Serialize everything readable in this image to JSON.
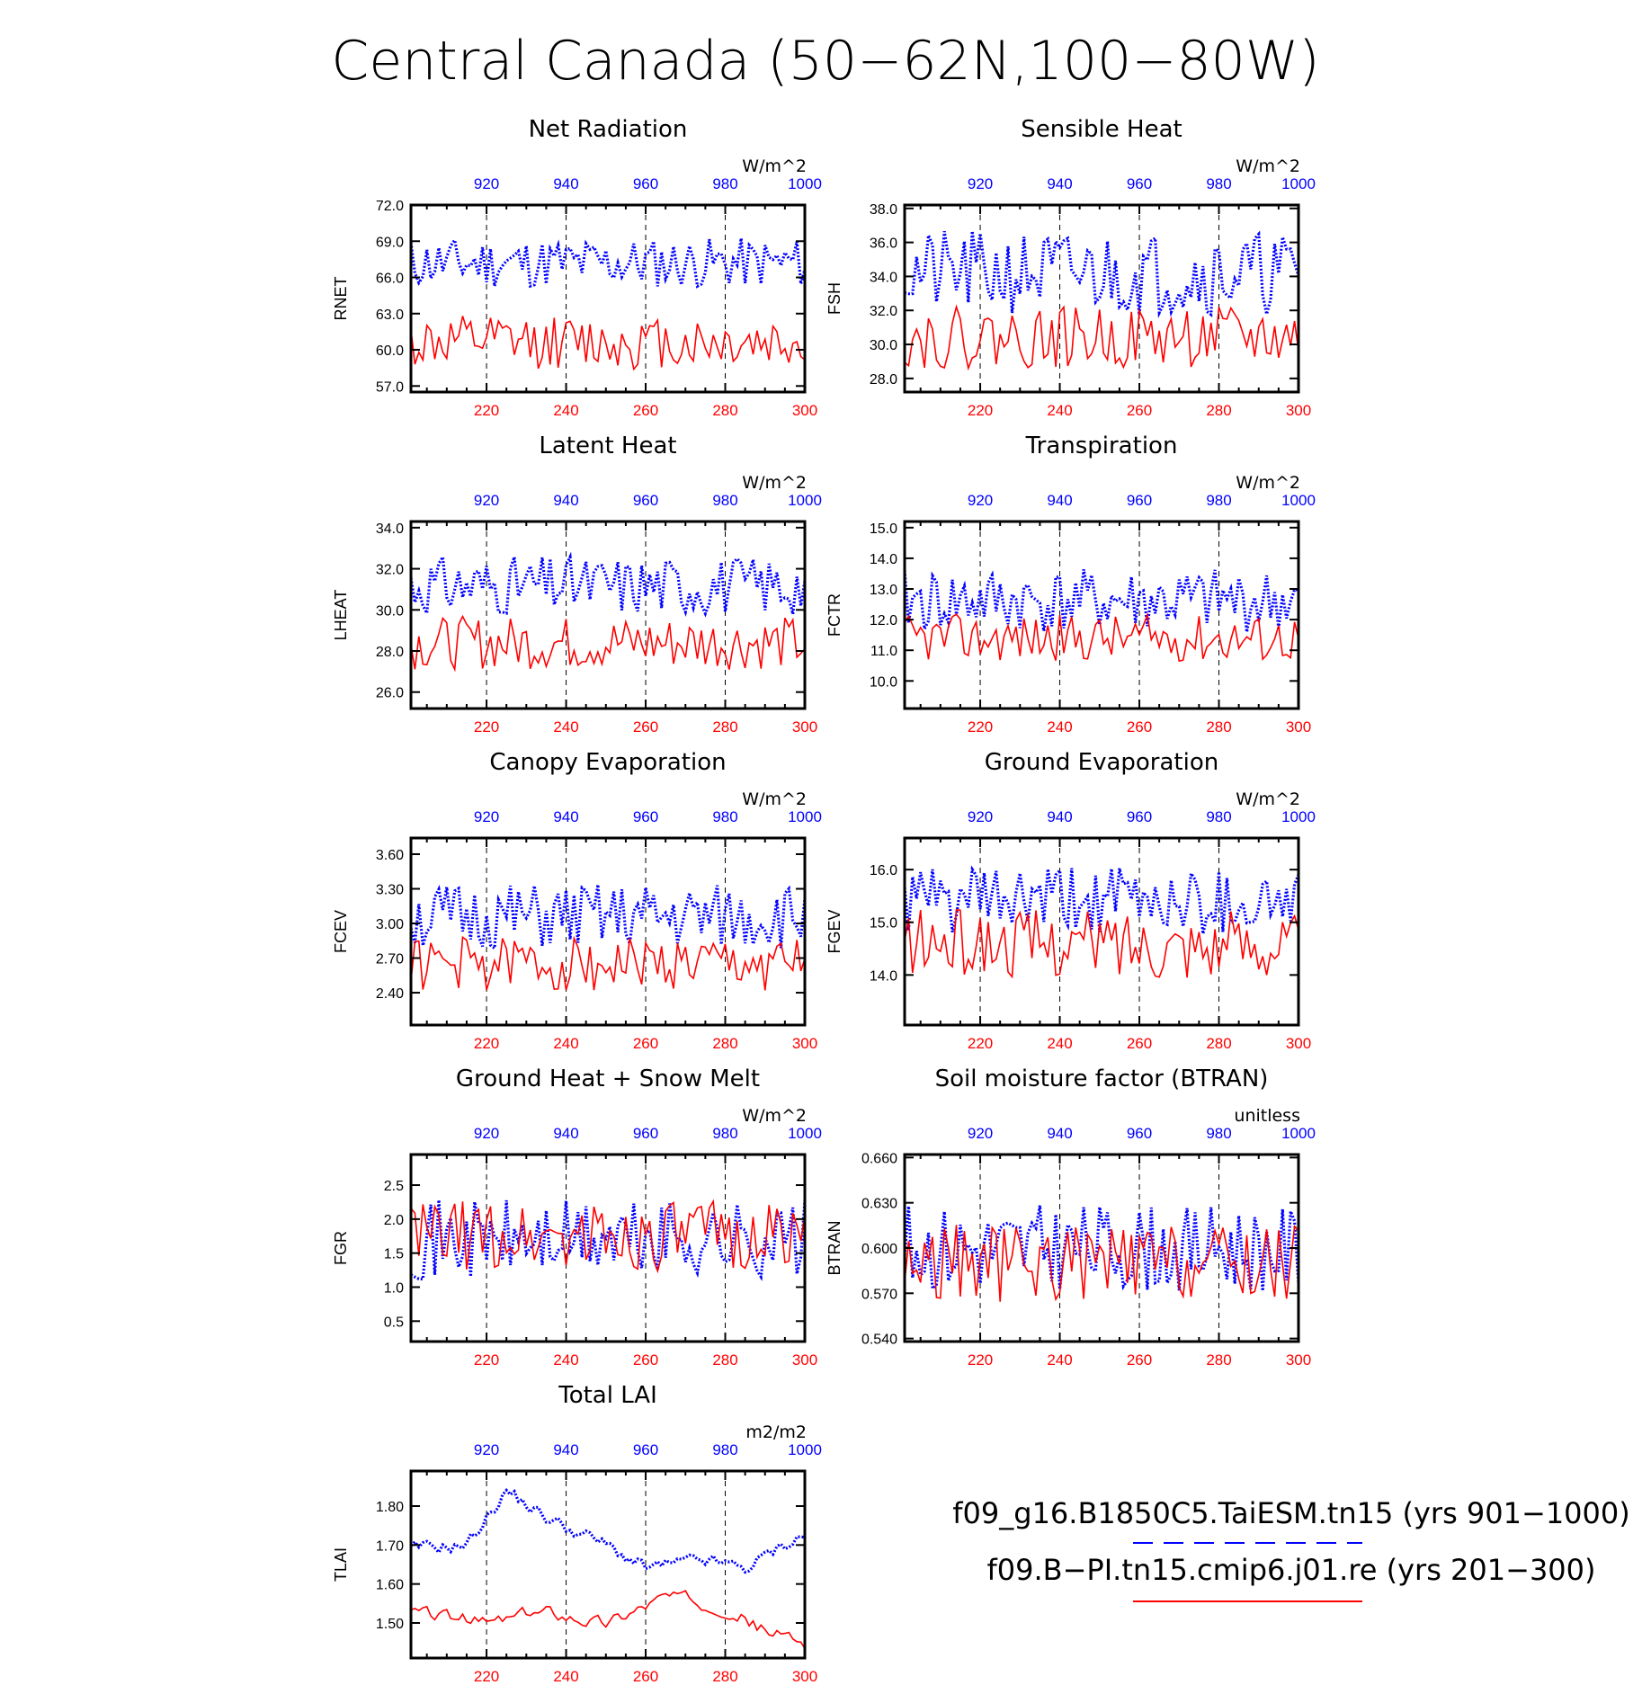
{
  "figure_title": "Central Canada (50−62N,100−80W)",
  "colors": {
    "run1": "#0000ff",
    "run2": "#ff0000"
  },
  "legend": {
    "entries": [
      {
        "label": "f09_g16.B1850C5.TaiESM.tn15 (yrs 901−1000)",
        "style": "blue-dashed"
      },
      {
        "label": "f09.B−PI.tn15.cmip6.j01.re (yrs 201−300)",
        "style": "red-solid"
      }
    ]
  },
  "chart_data": [
    {
      "type": "line",
      "title": "Net Radiation",
      "units": "W/m^2",
      "ylabel": "RNET",
      "ylim": [
        56.5,
        72.0
      ],
      "yticks": [
        "72.0",
        "69.0",
        "66.0",
        "63.0",
        "60.0",
        "57.0"
      ],
      "ytick_values": [
        72,
        69,
        66,
        63,
        60,
        57
      ],
      "x_top_ticks": [
        "920",
        "940",
        "960",
        "980",
        "1000"
      ],
      "x_top_values": [
        920,
        940,
        960,
        980,
        1000
      ],
      "x_bottom_ticks": [
        "220",
        "240",
        "260",
        "280",
        "300"
      ],
      "x_bottom_values": [
        220,
        240,
        260,
        280,
        300
      ],
      "series": [
        {
          "years": [
            901,
            1000
          ],
          "mean": 67.2,
          "amp": 1.6,
          "seed": 11
        },
        {
          "years": [
            201,
            300
          ],
          "mean": 60.6,
          "amp": 1.7,
          "seed": 12
        }
      ]
    },
    {
      "type": "line",
      "title": "Sensible Heat",
      "units": "W/m^2",
      "ylabel": "FSH",
      "ylim": [
        27.2,
        38.2
      ],
      "yticks": [
        "38.0",
        "36.0",
        "34.0",
        "32.0",
        "30.0",
        "28.0"
      ],
      "ytick_values": [
        38,
        36,
        34,
        32,
        30,
        28
      ],
      "x_top_ticks": [
        "920",
        "940",
        "960",
        "980",
        "1000"
      ],
      "x_top_values": [
        920,
        940,
        960,
        980,
        1000
      ],
      "x_bottom_ticks": [
        "220",
        "240",
        "260",
        "280",
        "300"
      ],
      "x_bottom_values": [
        220,
        240,
        260,
        280,
        300
      ],
      "series": [
        {
          "years": [
            901,
            1000
          ],
          "mean": 34.2,
          "amp": 1.9,
          "seed": 21
        },
        {
          "years": [
            201,
            300
          ],
          "mean": 30.4,
          "amp": 1.4,
          "seed": 22
        }
      ]
    },
    {
      "type": "line",
      "title": "Latent Heat",
      "units": "W/m^2",
      "ylabel": "LHEAT",
      "ylim": [
        25.2,
        34.3
      ],
      "yticks": [
        "34.0",
        "32.0",
        "30.0",
        "28.0",
        "26.0"
      ],
      "ytick_values": [
        34,
        32,
        30,
        28,
        26
      ],
      "x_top_ticks": [
        "920",
        "940",
        "960",
        "980",
        "1000"
      ],
      "x_top_values": [
        920,
        940,
        960,
        980,
        1000
      ],
      "x_bottom_ticks": [
        "220",
        "240",
        "260",
        "280",
        "300"
      ],
      "x_bottom_values": [
        220,
        240,
        260,
        280,
        300
      ],
      "series": [
        {
          "years": [
            901,
            1000
          ],
          "mean": 31.2,
          "amp": 1.1,
          "seed": 31
        },
        {
          "years": [
            201,
            300
          ],
          "mean": 28.4,
          "amp": 1.0,
          "seed": 32
        }
      ]
    },
    {
      "type": "line",
      "title": "Transpiration",
      "units": "W/m^2",
      "ylabel": "FCTR",
      "ylim": [
        9.1,
        15.2
      ],
      "yticks": [
        "15.0",
        "14.0",
        "13.0",
        "12.0",
        "11.0",
        "10.0"
      ],
      "ytick_values": [
        15,
        14,
        13,
        12,
        11,
        10
      ],
      "x_top_ticks": [
        "920",
        "940",
        "960",
        "980",
        "1000"
      ],
      "x_top_values": [
        920,
        940,
        960,
        980,
        1000
      ],
      "x_bottom_ticks": [
        "220",
        "240",
        "260",
        "280",
        "300"
      ],
      "x_bottom_values": [
        220,
        240,
        260,
        280,
        300
      ],
      "series": [
        {
          "years": [
            901,
            1000
          ],
          "mean": 12.6,
          "amp": 0.8,
          "seed": 41
        },
        {
          "years": [
            201,
            300
          ],
          "mean": 11.4,
          "amp": 0.6,
          "seed": 42
        }
      ]
    },
    {
      "type": "line",
      "title": "Canopy Evaporation",
      "units": "W/m^2",
      "ylabel": "FCEV",
      "ylim": [
        2.12,
        3.74
      ],
      "yticks": [
        "3.60",
        "3.30",
        "3.00",
        "2.70",
        "2.40"
      ],
      "ytick_values": [
        3.6,
        3.3,
        3.0,
        2.7,
        2.4
      ],
      "x_top_ticks": [
        "920",
        "940",
        "960",
        "980",
        "1000"
      ],
      "x_top_values": [
        920,
        940,
        960,
        980,
        1000
      ],
      "x_bottom_ticks": [
        "220",
        "240",
        "260",
        "280",
        "300"
      ],
      "x_bottom_values": [
        220,
        240,
        260,
        280,
        300
      ],
      "series": [
        {
          "years": [
            901,
            1000
          ],
          "mean": 3.05,
          "amp": 0.22,
          "seed": 51
        },
        {
          "years": [
            201,
            300
          ],
          "mean": 2.65,
          "amp": 0.18,
          "seed": 52
        }
      ]
    },
    {
      "type": "line",
      "title": "Ground Evaporation",
      "units": "W/m^2",
      "ylabel": "FGEV",
      "ylim": [
        13.05,
        16.6
      ],
      "yticks": [
        "16.0",
        "15.0",
        "14.0"
      ],
      "ytick_values": [
        16,
        15,
        14
      ],
      "x_top_ticks": [
        "920",
        "940",
        "960",
        "980",
        "1000"
      ],
      "x_top_values": [
        920,
        940,
        960,
        980,
        1000
      ],
      "x_bottom_ticks": [
        "220",
        "240",
        "260",
        "280",
        "300"
      ],
      "x_bottom_values": [
        220,
        240,
        260,
        280,
        300
      ],
      "series": [
        {
          "years": [
            901,
            1000
          ],
          "mean": 15.4,
          "amp": 0.5,
          "seed": 61
        },
        {
          "years": [
            201,
            300
          ],
          "mean": 14.6,
          "amp": 0.5,
          "seed": 62
        }
      ]
    },
    {
      "type": "line",
      "title": "Ground Heat + Snow Melt",
      "units": "W/m^2",
      "ylabel": "FGR",
      "ylim": [
        0.2,
        2.95
      ],
      "yticks": [
        "2.5",
        "2.0",
        "1.5",
        "1.0",
        "0.5"
      ],
      "ytick_values": [
        2.5,
        2.0,
        1.5,
        1.0,
        0.5
      ],
      "x_top_ticks": [
        "920",
        "940",
        "960",
        "980",
        "1000"
      ],
      "x_top_values": [
        920,
        940,
        960,
        980,
        1000
      ],
      "x_bottom_ticks": [
        "220",
        "240",
        "260",
        "280",
        "300"
      ],
      "x_bottom_values": [
        220,
        240,
        260,
        280,
        300
      ],
      "series": [
        {
          "years": [
            901,
            1000
          ],
          "mean": 1.7,
          "amp": 0.45,
          "seed": 71
        },
        {
          "years": [
            201,
            300
          ],
          "mean": 1.75,
          "amp": 0.4,
          "seed": 72
        }
      ]
    },
    {
      "type": "line",
      "title": "Soil moisture factor (BTRAN)",
      "units": "unitless",
      "ylabel": "BTRAN",
      "ylim": [
        0.538,
        0.662
      ],
      "yticks": [
        "0.660",
        "0.630",
        "0.600",
        "0.570",
        "0.540"
      ],
      "ytick_values": [
        0.66,
        0.63,
        0.6,
        0.57,
        0.54
      ],
      "x_top_ticks": [
        "920",
        "940",
        "960",
        "980",
        "1000"
      ],
      "x_top_values": [
        920,
        940,
        960,
        980,
        1000
      ],
      "x_bottom_ticks": [
        "220",
        "240",
        "260",
        "280",
        "300"
      ],
      "x_bottom_values": [
        220,
        240,
        260,
        280,
        300
      ],
      "series": [
        {
          "years": [
            901,
            1000
          ],
          "mean": 0.6,
          "amp": 0.022,
          "seed": 81
        },
        {
          "years": [
            201,
            300
          ],
          "mean": 0.59,
          "amp": 0.02,
          "seed": 82
        }
      ]
    },
    {
      "type": "line",
      "title": "Total LAI",
      "units": "m2/m2",
      "ylabel": "TLAI",
      "ylim": [
        1.41,
        1.89
      ],
      "yticks": [
        "1.80",
        "1.70",
        "1.60",
        "1.50"
      ],
      "ytick_values": [
        1.8,
        1.7,
        1.6,
        1.5
      ],
      "x_top_ticks": [
        "920",
        "940",
        "960",
        "980",
        "1000"
      ],
      "x_top_values": [
        920,
        940,
        960,
        980,
        1000
      ],
      "x_bottom_ticks": [
        "220",
        "240",
        "260",
        "280",
        "300"
      ],
      "x_bottom_values": [
        220,
        240,
        260,
        280,
        300
      ],
      "series": [
        {
          "years": [
            901,
            1000
          ],
          "mean": 1.7,
          "amp": 0.03,
          "seed": 91,
          "trend": [
            [
              901,
              1.69
            ],
            [
              915,
              1.7
            ],
            [
              925,
              1.84
            ],
            [
              935,
              1.77
            ],
            [
              950,
              1.7
            ],
            [
              960,
              1.64
            ],
            [
              975,
              1.66
            ],
            [
              985,
              1.64
            ],
            [
              1000,
              1.73
            ]
          ]
        },
        {
          "years": [
            201,
            300
          ],
          "mean": 1.52,
          "amp": 0.03,
          "seed": 92,
          "trend": [
            [
              201,
              1.53
            ],
            [
              220,
              1.5
            ],
            [
              235,
              1.53
            ],
            [
              250,
              1.5
            ],
            [
              265,
              1.57
            ],
            [
              280,
              1.54
            ],
            [
              290,
              1.48
            ],
            [
              300,
              1.45
            ]
          ]
        }
      ]
    }
  ]
}
